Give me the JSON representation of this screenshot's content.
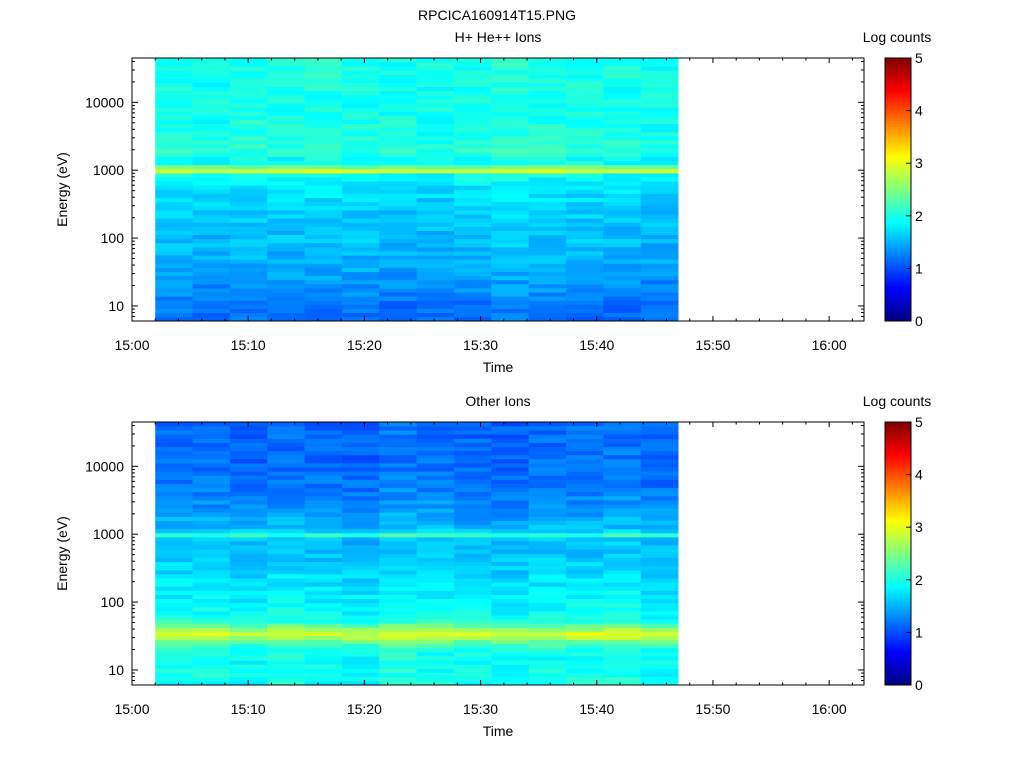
{
  "figure_title": "RPCICA160914T15.PNG",
  "chart_data": [
    {
      "type": "heatmap",
      "title": "H+ He++ Ions",
      "xlabel": "Time",
      "ylabel": "Energy (eV)",
      "y_scale": "log",
      "x_ticks": [
        "15:00",
        "15:10",
        "15:20",
        "15:30",
        "15:40",
        "15:50",
        "16:00"
      ],
      "xlim": [
        "15:00",
        "16:03"
      ],
      "y_ticks": [
        "10",
        "100",
        "1000",
        "10000"
      ],
      "ylim": [
        6,
        45000
      ],
      "data_time_range": [
        "15:02",
        "15:47"
      ],
      "time_bins": 14,
      "colorbar": {
        "label": "Log counts",
        "ticks": [
          "0",
          "1",
          "2",
          "3",
          "4",
          "5"
        ],
        "range": [
          0,
          5
        ],
        "colormap": "jet"
      },
      "profile": [
        {
          "energy": 6,
          "log_counts": 1.15
        },
        {
          "energy": 10,
          "log_counts": 1.2
        },
        {
          "energy": 20,
          "log_counts": 1.35
        },
        {
          "energy": 40,
          "log_counts": 1.45
        },
        {
          "energy": 80,
          "log_counts": 1.55
        },
        {
          "energy": 200,
          "log_counts": 1.6
        },
        {
          "energy": 500,
          "log_counts": 1.72
        },
        {
          "energy": 850,
          "log_counts": 1.9
        },
        {
          "energy": 1000,
          "log_counts": 3.1
        },
        {
          "energy": 1200,
          "log_counts": 1.95
        },
        {
          "energy": 1500,
          "log_counts": 1.9
        },
        {
          "energy": 2000,
          "log_counts": 2.1
        },
        {
          "energy": 3000,
          "log_counts": 2.0
        },
        {
          "energy": 10000,
          "log_counts": 1.95
        },
        {
          "energy": 45000,
          "log_counts": 2.0
        }
      ]
    },
    {
      "type": "heatmap",
      "title": "Other Ions",
      "xlabel": "Time",
      "ylabel": "Energy (eV)",
      "y_scale": "log",
      "x_ticks": [
        "15:00",
        "15:10",
        "15:20",
        "15:30",
        "15:40",
        "15:50",
        "16:00"
      ],
      "xlim": [
        "15:00",
        "16:03"
      ],
      "y_ticks": [
        "10",
        "100",
        "1000",
        "10000"
      ],
      "ylim": [
        6,
        45000
      ],
      "data_time_range": [
        "15:02",
        "15:47"
      ],
      "time_bins": 14,
      "colorbar": {
        "label": "Log counts",
        "ticks": [
          "0",
          "1",
          "2",
          "3",
          "4",
          "5"
        ],
        "range": [
          0,
          5
        ],
        "colormap": "jet"
      },
      "profile": [
        {
          "energy": 6,
          "log_counts": 1.95
        },
        {
          "energy": 20,
          "log_counts": 1.95
        },
        {
          "energy": 26,
          "log_counts": 2.4
        },
        {
          "energy": 33,
          "log_counts": 3.0
        },
        {
          "energy": 42,
          "log_counts": 2.5
        },
        {
          "energy": 55,
          "log_counts": 1.95
        },
        {
          "energy": 200,
          "log_counts": 1.75
        },
        {
          "energy": 600,
          "log_counts": 1.55
        },
        {
          "energy": 900,
          "log_counts": 1.6
        },
        {
          "energy": 1000,
          "log_counts": 2.25
        },
        {
          "energy": 1150,
          "log_counts": 1.55
        },
        {
          "energy": 3000,
          "log_counts": 1.3
        },
        {
          "energy": 10000,
          "log_counts": 1.15
        },
        {
          "energy": 45000,
          "log_counts": 1.15
        }
      ]
    }
  ]
}
